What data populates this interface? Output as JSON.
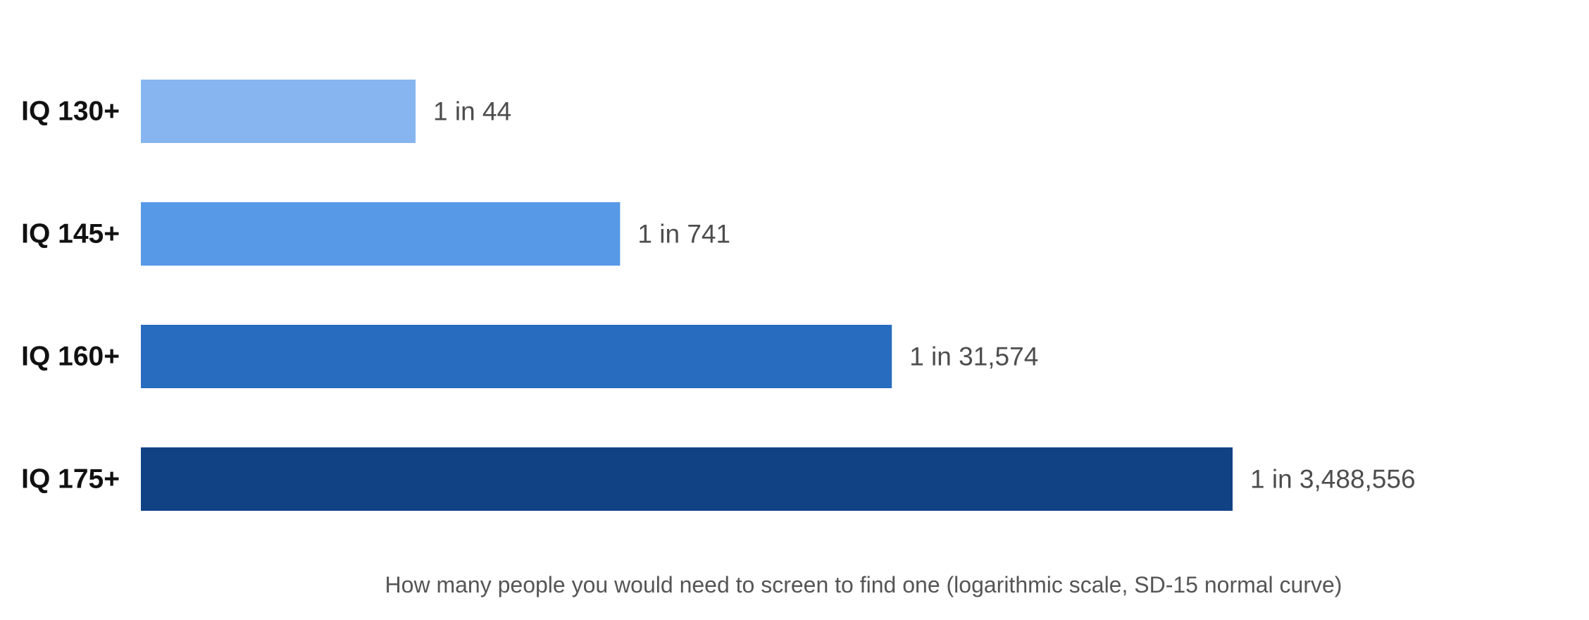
{
  "chart_data": {
    "type": "bar",
    "orientation": "horizontal",
    "scale": "log",
    "categories": [
      "IQ 130+",
      "IQ 145+",
      "IQ 160+",
      "IQ 175+"
    ],
    "values": [
      44,
      741,
      31574,
      3488556
    ],
    "value_labels": [
      "1 in 44",
      "1 in 741",
      "1 in 31,574",
      "1 in 3,488,556"
    ],
    "colors": [
      "#87b5f0",
      "#5799e6",
      "#286cbf",
      "#114283"
    ],
    "title": "",
    "xlabel": "How many people you would need to screen to find one (logarithmic scale, SD-15 normal curve)",
    "ylabel": "",
    "grid": false,
    "legend": "none"
  }
}
